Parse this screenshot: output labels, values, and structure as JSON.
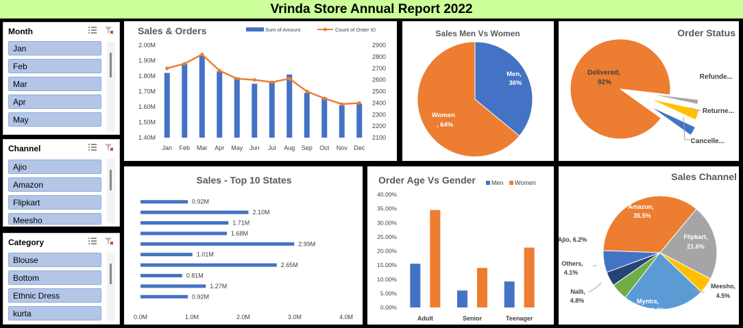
{
  "report_title": "Vrinda Store Annual Report 2022",
  "slicers": [
    {
      "title": "Month",
      "items": [
        "Jan",
        "Feb",
        "Mar",
        "Apr",
        "May"
      ]
    },
    {
      "title": "Channel",
      "items": [
        "Ajio",
        "Amazon",
        "Flipkart",
        "Meesho"
      ]
    },
    {
      "title": "Category",
      "items": [
        "Blouse",
        "Bottom",
        "Ethnic Dress",
        "kurta"
      ]
    }
  ],
  "icons": {
    "multiselect": "multi-select-icon",
    "clear": "clear-filter-icon"
  },
  "colors": {
    "blue": "#4472c4",
    "orange": "#ed7d31",
    "gray": "#a5a5a5",
    "yellow": "#ffc000",
    "light_blue": "#5b9bd5",
    "green": "#70ad47",
    "navy": "#264478",
    "header": "#ccff99"
  },
  "chart_data": [
    {
      "id": "sales-orders",
      "type": "bar",
      "title": "Sales & Orders",
      "categories": [
        "Jan",
        "Feb",
        "Mar",
        "Apr",
        "May",
        "Jun",
        "Jul",
        "Aug",
        "Sep",
        "Oct",
        "Nov",
        "Dec"
      ],
      "series": [
        {
          "name": "Sum of Amount",
          "type": "bar",
          "values": [
            1.82,
            1.88,
            1.93,
            1.83,
            1.79,
            1.75,
            1.76,
            1.81,
            1.69,
            1.66,
            1.61,
            1.62
          ]
        },
        {
          "name": "Count of Order ID",
          "type": "line",
          "values": [
            2700,
            2740,
            2820,
            2680,
            2610,
            2600,
            2580,
            2610,
            2500,
            2440,
            2390,
            2400
          ]
        }
      ],
      "y_ticks": [
        "1.40M",
        "1.50M",
        "1.60M",
        "1.70M",
        "1.80M",
        "1.90M",
        "2.00M"
      ],
      "ylim": [
        1.4,
        2.0
      ],
      "y2_ticks": [
        "2100",
        "2200",
        "2300",
        "2400",
        "2500",
        "2600",
        "2700",
        "2800",
        "2900"
      ],
      "y2lim": [
        2100,
        2900
      ],
      "legend": "top"
    },
    {
      "id": "men-women",
      "type": "pie",
      "title": "Sales Men Vs Women",
      "labels": [
        "Men",
        "Women"
      ],
      "values": [
        36,
        64
      ],
      "data_labels": [
        "Men,",
        "Women"
      ],
      "pct_labels": [
        "36%",
        ", 64%"
      ]
    },
    {
      "id": "order-status",
      "type": "pie",
      "title": "Order Status",
      "labels": [
        "Delivered",
        "Refunded",
        "Returned",
        "Cancelled"
      ],
      "values": [
        92,
        1.5,
        3.5,
        3
      ],
      "data_labels": [
        "Delivered,",
        "Refunde...",
        "Returne...",
        "Cancelle..."
      ],
      "pct_labels": [
        "92%"
      ]
    },
    {
      "id": "top-states",
      "type": "bar",
      "orientation": "horizontal",
      "title": "Sales - Top 10 States",
      "values": [
        0.92,
        2.1,
        1.71,
        1.68,
        2.99,
        1.01,
        2.65,
        0.81,
        1.27,
        0.92
      ],
      "value_labels": [
        "0.92M",
        "2.10M",
        "1.71M",
        "1.68M",
        "2.99M",
        "1.01M",
        "2.65M",
        "0.81M",
        "1.27M",
        "0.92M"
      ],
      "x_ticks": [
        "0.0M",
        "1.0M",
        "2.0M",
        "3.0M",
        "4.0M"
      ],
      "xlim": [
        0,
        4
      ]
    },
    {
      "id": "age-gender",
      "type": "bar",
      "title": "Order Age Vs Gender",
      "categories": [
        "Adult",
        "Senior",
        "Teenager"
      ],
      "series": [
        {
          "name": "Men",
          "values": [
            15.5,
            6.0,
            9.2
          ]
        },
        {
          "name": "Women",
          "values": [
            34.5,
            14.0,
            21.2
          ]
        }
      ],
      "y_ticks": [
        "0.00%",
        "5.00%",
        "10.00%",
        "15.00%",
        "20.00%",
        "25.00%",
        "30.00%",
        "35.00%",
        "40.00%"
      ],
      "ylim": [
        0,
        40
      ],
      "legend": "top-right"
    },
    {
      "id": "sales-channel",
      "type": "pie",
      "title": "Sales Channel",
      "labels": [
        "Amazon",
        "Flipkart",
        "Meesho",
        "Myntra",
        "Nalli",
        "Others",
        "Ajio"
      ],
      "values": [
        35.5,
        21.6,
        4.5,
        23.4,
        4.8,
        4.1,
        6.2
      ],
      "data_labels": [
        "Amazon,",
        "Flipkart,",
        "Meesho,",
        "Myntra,",
        "Nalli,",
        "Others,",
        "Ajio, 6.2%"
      ],
      "pct_labels": [
        "35.5%",
        "21.6%",
        "4.5%",
        "23.4%",
        "4.8%",
        "4.1%",
        ""
      ]
    }
  ]
}
